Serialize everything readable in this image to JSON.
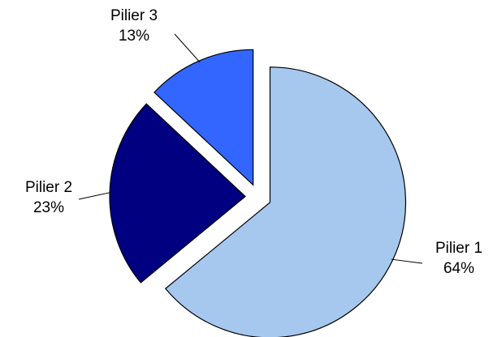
{
  "chart_data": {
    "type": "pie",
    "categories": [
      "Pilier 1",
      "Pilier 2",
      "Pilier 3"
    ],
    "values": [
      64,
      23,
      13
    ],
    "value_labels": [
      "64%",
      "23%",
      "13%"
    ],
    "colors": [
      "#a6c8ee",
      "#000080",
      "#3366ff"
    ]
  }
}
